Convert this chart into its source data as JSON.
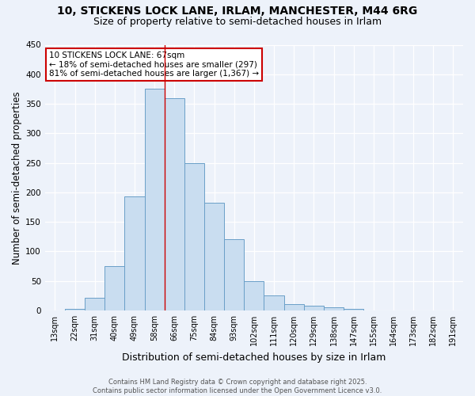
{
  "title_line1": "10, STICKENS LOCK LANE, IRLAM, MANCHESTER, M44 6RG",
  "title_line2": "Size of property relative to semi-detached houses in Irlam",
  "xlabel": "Distribution of semi-detached houses by size in Irlam",
  "ylabel": "Number of semi-detached properties",
  "categories": [
    "13sqm",
    "22sqm",
    "31sqm",
    "40sqm",
    "49sqm",
    "58sqm",
    "66sqm",
    "75sqm",
    "84sqm",
    "93sqm",
    "102sqm",
    "111sqm",
    "120sqm",
    "129sqm",
    "138sqm",
    "147sqm",
    "155sqm",
    "164sqm",
    "173sqm",
    "182sqm",
    "191sqm"
  ],
  "values": [
    0,
    3,
    22,
    75,
    193,
    375,
    360,
    250,
    183,
    120,
    50,
    25,
    10,
    8,
    5,
    3,
    0,
    0,
    0,
    0,
    0
  ],
  "bar_color": "#c9ddf0",
  "bar_edge_color": "#6a9fc8",
  "vline_color": "#cc0000",
  "annotation_text": "10 STICKENS LOCK LANE: 67sqm\n← 18% of semi-detached houses are smaller (297)\n81% of semi-detached houses are larger (1,367) →",
  "annotation_box_color": "#ffffff",
  "annotation_box_edge": "#cc0000",
  "ylim": [
    0,
    450
  ],
  "yticks": [
    0,
    50,
    100,
    150,
    200,
    250,
    300,
    350,
    400,
    450
  ],
  "background_color": "#edf2fa",
  "grid_color": "#d0d8e8",
  "footer_text": "Contains HM Land Registry data © Crown copyright and database right 2025.\nContains public sector information licensed under the Open Government Licence v3.0.",
  "title_fontsize": 10,
  "subtitle_fontsize": 9,
  "axis_label_fontsize": 8.5,
  "tick_fontsize": 7,
  "annotation_fontsize": 7.5,
  "footer_fontsize": 6,
  "vline_index": 6
}
